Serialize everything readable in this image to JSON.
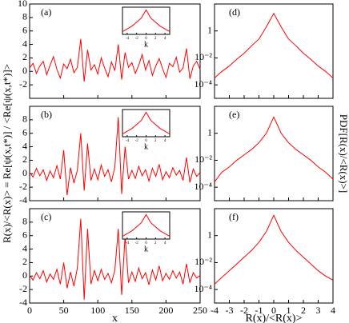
{
  "chart_data": [
    {
      "type": "line",
      "label": "(a)",
      "xlim": [
        0,
        250
      ],
      "ylim": [
        -4,
        10
      ],
      "xticks": [
        0,
        50,
        100,
        150,
        200,
        250
      ],
      "xtick_labels": false,
      "yticks": [
        -2,
        0,
        2,
        4,
        6,
        8,
        10
      ],
      "x": [
        0,
        5,
        10,
        15,
        20,
        25,
        30,
        35,
        40,
        45,
        50,
        55,
        60,
        65,
        70,
        75,
        80,
        85,
        90,
        95,
        100,
        105,
        110,
        115,
        120,
        125,
        130,
        135,
        140,
        145,
        150,
        155,
        160,
        165,
        170,
        175,
        180,
        185,
        190,
        195,
        200,
        205,
        210,
        215,
        220,
        225,
        230,
        235,
        240,
        245,
        250
      ],
      "series": [
        {
          "color": "#ff0000",
          "values": [
            0.5,
            1.2,
            -0.3,
            0.8,
            1.5,
            -0.5,
            0.9,
            2.2,
            0.3,
            -1.0,
            1.1,
            0.4,
            1.8,
            -0.2,
            0.6,
            4.8,
            -1.5,
            3.2,
            0.2,
            1.0,
            -0.4,
            2.0,
            0.5,
            -0.8,
            1.4,
            0.1,
            4.0,
            -1.2,
            2.8,
            0.6,
            1.3,
            -0.3,
            0.9,
            2.5,
            0.2,
            1.6,
            -0.6,
            0.8,
            1.9,
            0.4,
            -0.9,
            1.2,
            0.7,
            2.1,
            -0.1,
            0.5,
            3.4,
            -1.1,
            0.8,
            1.5,
            0.3
          ]
        }
      ],
      "inset": {
        "xlabel": "k",
        "xlim": [
          -5,
          5
        ],
        "ylim": [
          0,
          1
        ],
        "xticks": [
          -4,
          -2,
          0,
          2,
          4
        ],
        "x": [
          -5,
          -4,
          -3,
          -2,
          -1,
          0,
          1,
          2,
          3,
          4,
          5
        ],
        "values": [
          0.1,
          0.2,
          0.3,
          0.45,
          0.6,
          0.9,
          0.6,
          0.45,
          0.3,
          0.2,
          0.1
        ]
      }
    },
    {
      "type": "line",
      "label": "(b)",
      "xlim": [
        0,
        250
      ],
      "ylim": [
        -4,
        10
      ],
      "xticks": [
        0,
        50,
        100,
        150,
        200,
        250
      ],
      "xtick_labels": false,
      "yticks": [
        -4,
        -2,
        0,
        2,
        4,
        6,
        8
      ],
      "ylabel": "R(x)/<R(x)> = Re[ψ(x,t*)] / <Re[ψ(x,t*)]>",
      "x": [
        0,
        5,
        10,
        15,
        20,
        25,
        30,
        35,
        40,
        45,
        50,
        55,
        60,
        65,
        70,
        75,
        80,
        85,
        90,
        95,
        100,
        105,
        110,
        115,
        120,
        125,
        130,
        135,
        140,
        145,
        150,
        155,
        160,
        165,
        170,
        175,
        180,
        185,
        190,
        195,
        200,
        205,
        210,
        215,
        220,
        225,
        230,
        235,
        240,
        245,
        250
      ],
      "series": [
        {
          "color": "#ff0000",
          "values": [
            0.2,
            -0.5,
            0.8,
            -0.3,
            0.6,
            -1.0,
            0.4,
            -0.6,
            1.2,
            -0.8,
            3.5,
            -3.2,
            0.9,
            -1.4,
            0.5,
            6.0,
            -2.5,
            4.5,
            -1.0,
            0.7,
            -0.9,
            1.3,
            -0.4,
            0.6,
            -1.2,
            1.0,
            8.4,
            -3.0,
            4.0,
            -0.8,
            0.5,
            -0.7,
            1.1,
            -0.3,
            0.6,
            -1.1,
            0.8,
            -0.4,
            1.4,
            -0.9,
            0.3,
            -0.6,
            0.9,
            -0.2,
            0.5,
            -1.0,
            2.4,
            -1.3,
            0.7,
            -0.4,
            0.2
          ]
        }
      ],
      "inset": {
        "xlabel": "k",
        "xlim": [
          -5,
          5
        ],
        "ylim": [
          0,
          1
        ],
        "xticks": [
          -4,
          -2,
          0,
          2,
          4
        ],
        "x": [
          -5,
          -4,
          -3,
          -2,
          -1,
          0,
          1,
          2,
          3,
          4,
          5
        ],
        "values": [
          0.1,
          0.2,
          0.3,
          0.45,
          0.6,
          0.9,
          0.6,
          0.45,
          0.3,
          0.2,
          0.1
        ]
      }
    },
    {
      "type": "line",
      "label": "(c)",
      "xlim": [
        0,
        250
      ],
      "ylim": [
        -4,
        10
      ],
      "xticks": [
        0,
        50,
        100,
        150,
        200,
        250
      ],
      "xtick_labels": true,
      "yticks": [
        -4,
        -2,
        0,
        2,
        4,
        6,
        8
      ],
      "xlabel": "x",
      "x": [
        0,
        5,
        10,
        15,
        20,
        25,
        30,
        35,
        40,
        45,
        50,
        55,
        60,
        65,
        70,
        75,
        80,
        85,
        90,
        95,
        100,
        105,
        110,
        115,
        120,
        125,
        130,
        135,
        140,
        145,
        150,
        155,
        160,
        165,
        170,
        175,
        180,
        185,
        190,
        195,
        200,
        205,
        210,
        215,
        220,
        225,
        230,
        235,
        240,
        245,
        250
      ],
      "series": [
        {
          "color": "#ff0000",
          "values": [
            0.1,
            -0.6,
            0.5,
            -0.4,
            0.8,
            -0.9,
            0.3,
            -0.5,
            1.0,
            -1.2,
            2.0,
            -1.8,
            0.6,
            -1.5,
            1.2,
            8.5,
            -3.5,
            7.0,
            -1.2,
            0.8,
            -0.7,
            1.0,
            -0.5,
            0.4,
            -1.0,
            0.9,
            7.0,
            -2.8,
            6.0,
            -1.0,
            0.6,
            -0.8,
            1.2,
            -0.4,
            0.5,
            -1.3,
            0.9,
            -0.6,
            1.5,
            -0.7,
            0.4,
            -0.5,
            0.8,
            -0.3,
            0.6,
            -1.2,
            1.8,
            -1.0,
            0.5,
            -0.3,
            0.1
          ]
        }
      ],
      "inset": {
        "xlabel": "k",
        "xlim": [
          -5,
          5
        ],
        "ylim": [
          0,
          1
        ],
        "xticks": [
          -4,
          -2,
          0,
          2,
          4
        ],
        "x": [
          -5,
          -4,
          -3,
          -2,
          -1,
          0,
          1,
          2,
          3,
          4,
          5
        ],
        "values": [
          0.1,
          0.2,
          0.3,
          0.45,
          0.6,
          0.9,
          0.6,
          0.45,
          0.3,
          0.2,
          0.1
        ]
      }
    },
    {
      "type": "line",
      "label": "(d)",
      "log_y": true,
      "xlim": [
        -4,
        4
      ],
      "ylim": [
        1e-05,
        100
      ],
      "xticks": [
        -4,
        -3,
        -2,
        -1,
        0,
        1,
        2,
        3,
        4
      ],
      "xtick_labels": false,
      "yticks": [
        {
          "value": 1,
          "label": "1"
        },
        {
          "value": 0.01,
          "label": "10⁻²"
        },
        {
          "value": 0.0001,
          "label": "10⁻⁴"
        }
      ],
      "x": [
        -4,
        -3.5,
        -3,
        -2.5,
        -2,
        -1.5,
        -1,
        -0.5,
        0,
        0.5,
        1,
        1.5,
        2,
        2.5,
        3,
        3.5,
        4
      ],
      "series": [
        {
          "color": "#ff0000",
          "values": [
            0.00032,
            0.001,
            0.0025,
            0.0079,
            0.022,
            0.079,
            0.25,
            2.0,
            20,
            2.0,
            0.25,
            0.079,
            0.022,
            0.0079,
            0.0025,
            0.001,
            0.00032
          ]
        }
      ]
    },
    {
      "type": "line",
      "label": "(e)",
      "log_y": true,
      "xlim": [
        -4,
        4
      ],
      "ylim": [
        1e-05,
        100
      ],
      "xticks": [
        -4,
        -3,
        -2,
        -1,
        0,
        1,
        2,
        3,
        4
      ],
      "xtick_labels": false,
      "yticks": [
        {
          "value": 1,
          "label": "1"
        },
        {
          "value": 0.01,
          "label": "10⁻²"
        },
        {
          "value": 0.0001,
          "label": "10⁻⁴"
        }
      ],
      "ylabel": "PDF[R(x)/<R(x)>]",
      "x": [
        -4,
        -3.5,
        -3,
        -2.5,
        -2,
        -1.5,
        -1,
        -0.5,
        0,
        0.5,
        1,
        1.5,
        2,
        2.5,
        3,
        3.5,
        4
      ],
      "series": [
        {
          "color": "#ff0000",
          "values": [
            0.00025,
            0.0013,
            0.0032,
            0.01,
            0.025,
            0.063,
            0.2,
            1.0,
            16,
            1.0,
            0.2,
            0.063,
            0.025,
            0.01,
            0.0032,
            0.0013,
            0.0004
          ]
        }
      ]
    },
    {
      "type": "line",
      "label": "(f)",
      "log_y": true,
      "xlim": [
        -4,
        4
      ],
      "ylim": [
        1e-05,
        100
      ],
      "xticks": [
        -4,
        -3,
        -2,
        -1,
        0,
        1,
        2,
        3,
        4
      ],
      "xtick_labels": true,
      "yticks": [
        {
          "value": 1,
          "label": "1"
        },
        {
          "value": 0.01,
          "label": "10⁻²"
        },
        {
          "value": 0.0001,
          "label": "10⁻⁴"
        }
      ],
      "xlabel": "R(x)/<R(x)>",
      "x": [
        -4,
        -3.5,
        -3,
        -2.5,
        -2,
        -1.5,
        -1,
        -0.5,
        0,
        0.5,
        1,
        1.5,
        2,
        2.5,
        3,
        3.5,
        4
      ],
      "series": [
        {
          "color": "#ff0000",
          "values": [
            0.00025,
            0.0008,
            0.0025,
            0.0079,
            0.025,
            0.079,
            0.32,
            2.0,
            32,
            2.0,
            0.32,
            0.079,
            0.025,
            0.0079,
            0.0025,
            0.001,
            0.0005
          ]
        }
      ]
    }
  ]
}
